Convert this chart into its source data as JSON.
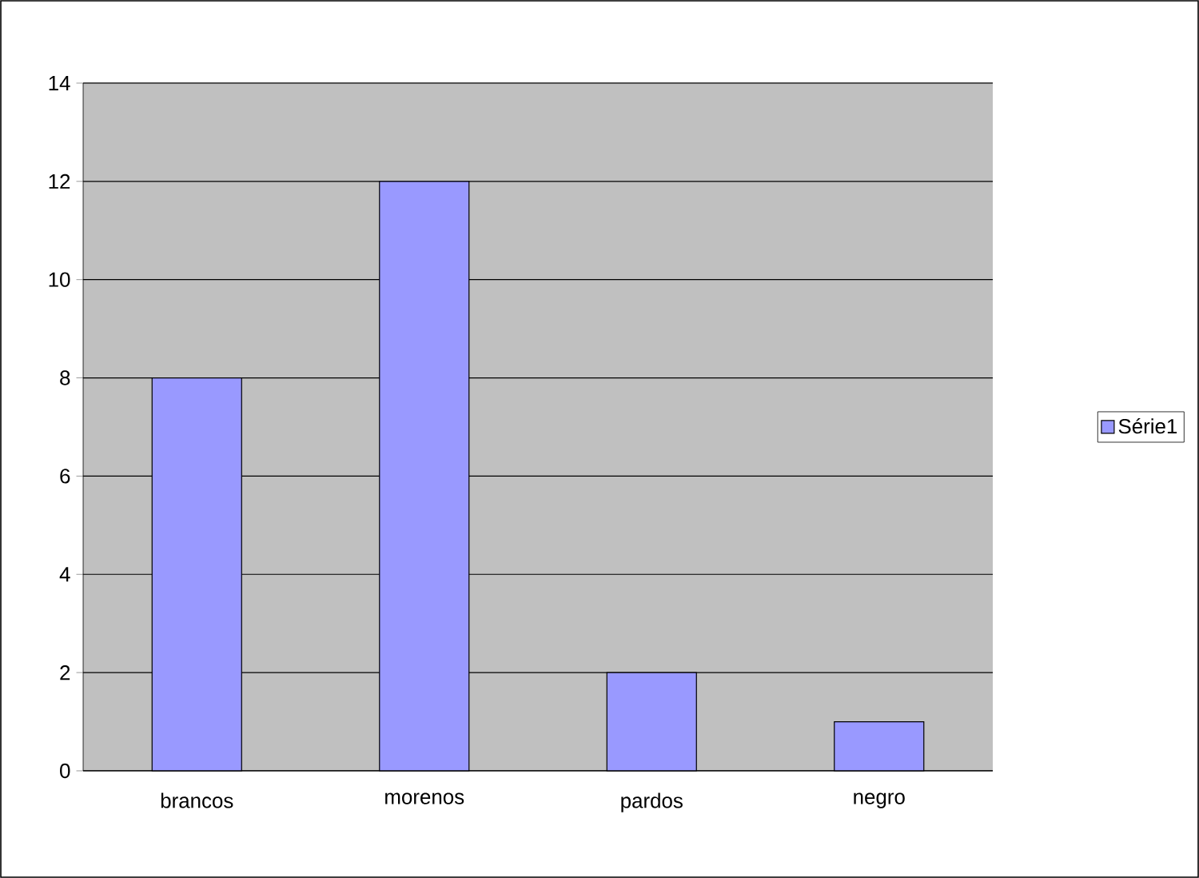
{
  "chart_data": {
    "type": "bar",
    "categories": [
      "brancos",
      "morenos",
      "pardos",
      "negro"
    ],
    "series": [
      {
        "name": "Série1",
        "color": "#9999ff",
        "values": [
          8,
          12,
          2,
          1
        ]
      }
    ],
    "ylim": [
      0,
      14
    ],
    "yticks": [
      0,
      2,
      4,
      6,
      8,
      10,
      12,
      14
    ],
    "grid": "y",
    "legend": "right"
  }
}
